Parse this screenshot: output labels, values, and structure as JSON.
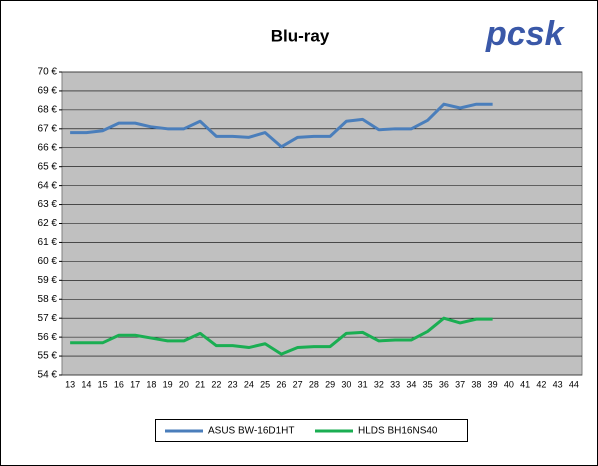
{
  "logo": "pcsk",
  "chart_data": {
    "type": "line",
    "title": "Blu-ray",
    "categories": [
      "13",
      "14",
      "15",
      "16",
      "17",
      "18",
      "19",
      "20",
      "21",
      "22",
      "23",
      "24",
      "25",
      "26",
      "27",
      "28",
      "29",
      "30",
      "31",
      "32",
      "33",
      "34",
      "35",
      "36",
      "37",
      "38",
      "39",
      "40",
      "41",
      "42",
      "43",
      "44"
    ],
    "series": [
      {
        "name": "ASUS BW-16D1HT",
        "color": "#4a7ebb",
        "values": [
          66.8,
          66.8,
          66.9,
          67.3,
          67.3,
          67.1,
          67.0,
          67.0,
          67.4,
          66.6,
          66.6,
          66.55,
          66.8,
          66.05,
          66.55,
          66.6,
          66.6,
          67.4,
          67.5,
          66.95,
          67.0,
          67.0,
          67.45,
          68.3,
          68.1,
          68.3,
          68.3,
          null,
          null,
          null,
          null,
          null
        ]
      },
      {
        "name": "HLDS BH16NS40",
        "color": "#1aae52",
        "values": [
          55.7,
          55.7,
          55.7,
          56.1,
          56.1,
          55.95,
          55.8,
          55.8,
          56.2,
          55.55,
          55.55,
          55.45,
          55.65,
          55.1,
          55.45,
          55.5,
          55.5,
          56.2,
          56.25,
          55.8,
          55.85,
          55.85,
          56.3,
          57.0,
          56.75,
          56.95,
          56.95,
          null,
          null,
          null,
          null,
          null
        ]
      }
    ],
    "ylim": [
      54,
      70
    ],
    "yticks": [
      {
        "value": 54,
        "label": "54 €"
      },
      {
        "value": 55,
        "label": "55 €"
      },
      {
        "value": 56,
        "label": "56 €"
      },
      {
        "value": 57,
        "label": "57 €"
      },
      {
        "value": 58,
        "label": "58 €"
      },
      {
        "value": 59,
        "label": "59 €"
      },
      {
        "value": 60,
        "label": "60 €"
      },
      {
        "value": 61,
        "label": "61 €"
      },
      {
        "value": 62,
        "label": "62 €"
      },
      {
        "value": 63,
        "label": "63 €"
      },
      {
        "value": 64,
        "label": "64 €"
      },
      {
        "value": 65,
        "label": "65 €"
      },
      {
        "value": 66,
        "label": "66 €"
      },
      {
        "value": 67,
        "label": "67 €"
      },
      {
        "value": 68,
        "label": "68 €"
      },
      {
        "value": 69,
        "label": "69 €"
      },
      {
        "value": 70,
        "label": "70 €"
      }
    ],
    "grid": true,
    "legend": "bottom"
  }
}
